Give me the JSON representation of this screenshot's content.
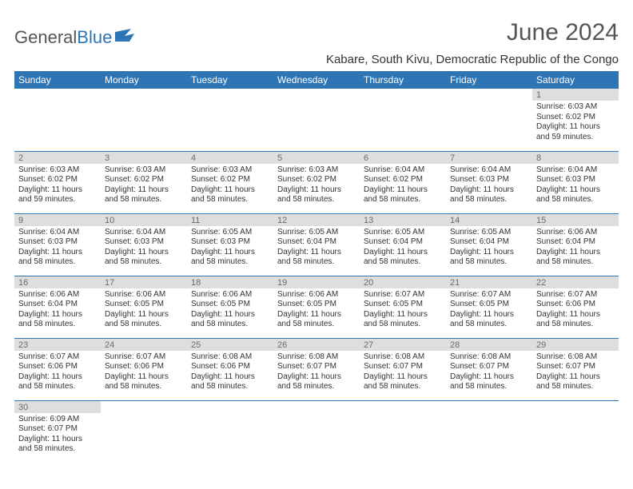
{
  "brand": {
    "part1": "General",
    "part2": "Blue"
  },
  "title": "June 2024",
  "location": "Kabare, South Kivu, Democratic Republic of the Congo",
  "colors": {
    "header_bg": "#2e75b6",
    "header_text": "#ffffff",
    "daynum_bg": "#dedede",
    "daynum_text": "#6a6a6a",
    "rule": "#2e75b6",
    "body_text": "#333333"
  },
  "day_headers": [
    "Sunday",
    "Monday",
    "Tuesday",
    "Wednesday",
    "Thursday",
    "Friday",
    "Saturday"
  ],
  "weeks": [
    [
      null,
      null,
      null,
      null,
      null,
      null,
      {
        "n": "1",
        "sunrise": "6:03 AM",
        "sunset": "6:02 PM",
        "daylight": "11 hours and 59 minutes."
      }
    ],
    [
      {
        "n": "2",
        "sunrise": "6:03 AM",
        "sunset": "6:02 PM",
        "daylight": "11 hours and 59 minutes."
      },
      {
        "n": "3",
        "sunrise": "6:03 AM",
        "sunset": "6:02 PM",
        "daylight": "11 hours and 58 minutes."
      },
      {
        "n": "4",
        "sunrise": "6:03 AM",
        "sunset": "6:02 PM",
        "daylight": "11 hours and 58 minutes."
      },
      {
        "n": "5",
        "sunrise": "6:03 AM",
        "sunset": "6:02 PM",
        "daylight": "11 hours and 58 minutes."
      },
      {
        "n": "6",
        "sunrise": "6:04 AM",
        "sunset": "6:02 PM",
        "daylight": "11 hours and 58 minutes."
      },
      {
        "n": "7",
        "sunrise": "6:04 AM",
        "sunset": "6:03 PM",
        "daylight": "11 hours and 58 minutes."
      },
      {
        "n": "8",
        "sunrise": "6:04 AM",
        "sunset": "6:03 PM",
        "daylight": "11 hours and 58 minutes."
      }
    ],
    [
      {
        "n": "9",
        "sunrise": "6:04 AM",
        "sunset": "6:03 PM",
        "daylight": "11 hours and 58 minutes."
      },
      {
        "n": "10",
        "sunrise": "6:04 AM",
        "sunset": "6:03 PM",
        "daylight": "11 hours and 58 minutes."
      },
      {
        "n": "11",
        "sunrise": "6:05 AM",
        "sunset": "6:03 PM",
        "daylight": "11 hours and 58 minutes."
      },
      {
        "n": "12",
        "sunrise": "6:05 AM",
        "sunset": "6:04 PM",
        "daylight": "11 hours and 58 minutes."
      },
      {
        "n": "13",
        "sunrise": "6:05 AM",
        "sunset": "6:04 PM",
        "daylight": "11 hours and 58 minutes."
      },
      {
        "n": "14",
        "sunrise": "6:05 AM",
        "sunset": "6:04 PM",
        "daylight": "11 hours and 58 minutes."
      },
      {
        "n": "15",
        "sunrise": "6:06 AM",
        "sunset": "6:04 PM",
        "daylight": "11 hours and 58 minutes."
      }
    ],
    [
      {
        "n": "16",
        "sunrise": "6:06 AM",
        "sunset": "6:04 PM",
        "daylight": "11 hours and 58 minutes."
      },
      {
        "n": "17",
        "sunrise": "6:06 AM",
        "sunset": "6:05 PM",
        "daylight": "11 hours and 58 minutes."
      },
      {
        "n": "18",
        "sunrise": "6:06 AM",
        "sunset": "6:05 PM",
        "daylight": "11 hours and 58 minutes."
      },
      {
        "n": "19",
        "sunrise": "6:06 AM",
        "sunset": "6:05 PM",
        "daylight": "11 hours and 58 minutes."
      },
      {
        "n": "20",
        "sunrise": "6:07 AM",
        "sunset": "6:05 PM",
        "daylight": "11 hours and 58 minutes."
      },
      {
        "n": "21",
        "sunrise": "6:07 AM",
        "sunset": "6:05 PM",
        "daylight": "11 hours and 58 minutes."
      },
      {
        "n": "22",
        "sunrise": "6:07 AM",
        "sunset": "6:06 PM",
        "daylight": "11 hours and 58 minutes."
      }
    ],
    [
      {
        "n": "23",
        "sunrise": "6:07 AM",
        "sunset": "6:06 PM",
        "daylight": "11 hours and 58 minutes."
      },
      {
        "n": "24",
        "sunrise": "6:07 AM",
        "sunset": "6:06 PM",
        "daylight": "11 hours and 58 minutes."
      },
      {
        "n": "25",
        "sunrise": "6:08 AM",
        "sunset": "6:06 PM",
        "daylight": "11 hours and 58 minutes."
      },
      {
        "n": "26",
        "sunrise": "6:08 AM",
        "sunset": "6:07 PM",
        "daylight": "11 hours and 58 minutes."
      },
      {
        "n": "27",
        "sunrise": "6:08 AM",
        "sunset": "6:07 PM",
        "daylight": "11 hours and 58 minutes."
      },
      {
        "n": "28",
        "sunrise": "6:08 AM",
        "sunset": "6:07 PM",
        "daylight": "11 hours and 58 minutes."
      },
      {
        "n": "29",
        "sunrise": "6:08 AM",
        "sunset": "6:07 PM",
        "daylight": "11 hours and 58 minutes."
      }
    ],
    [
      {
        "n": "30",
        "sunrise": "6:09 AM",
        "sunset": "6:07 PM",
        "daylight": "11 hours and 58 minutes."
      },
      null,
      null,
      null,
      null,
      null,
      null
    ]
  ],
  "labels": {
    "sunrise_prefix": "Sunrise: ",
    "sunset_prefix": "Sunset: ",
    "daylight_prefix": "Daylight: "
  }
}
